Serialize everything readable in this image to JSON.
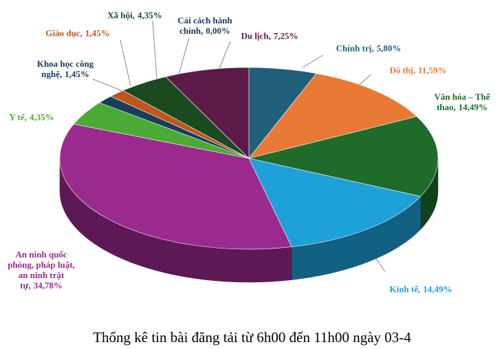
{
  "chart_data": {
    "type": "pie",
    "title": "Thống kê tin bài đăng tải từ 6h00 đến 11h00 ngày 03-4",
    "categories": [
      "Chính trị,",
      "Đô thị,",
      "Văn hóa – Thể thao,",
      "Kinh tế,",
      "An ninh quốc phòng, pháp luật, an ninh trật tự,",
      "Y tế,",
      "Khoa học công nghệ,",
      "Giáo dục,",
      "Xã hội,",
      "Cải cách hành chính,",
      "Du lịch,"
    ],
    "values": [
      5.8,
      11.59,
      14.49,
      14.49,
      34.78,
      4.35,
      1.45,
      1.45,
      4.35,
      0,
      7.25
    ],
    "value_labels": [
      "5,80%",
      "11,59%",
      "14,49%",
      "14,49%",
      "34,78%",
      "4,35%",
      "1,45%",
      "1,45%",
      "4,35%",
      "0,00%",
      "7,25%"
    ],
    "colors": [
      "#1f5f7a",
      "#e87a35",
      "#1e6b2a",
      "#1ea0d8",
      "#9b2a8e",
      "#4aaa36",
      "#173e5b",
      "#c0561e",
      "#1b4a20",
      "#2a5070",
      "#5c1a48"
    ]
  }
}
